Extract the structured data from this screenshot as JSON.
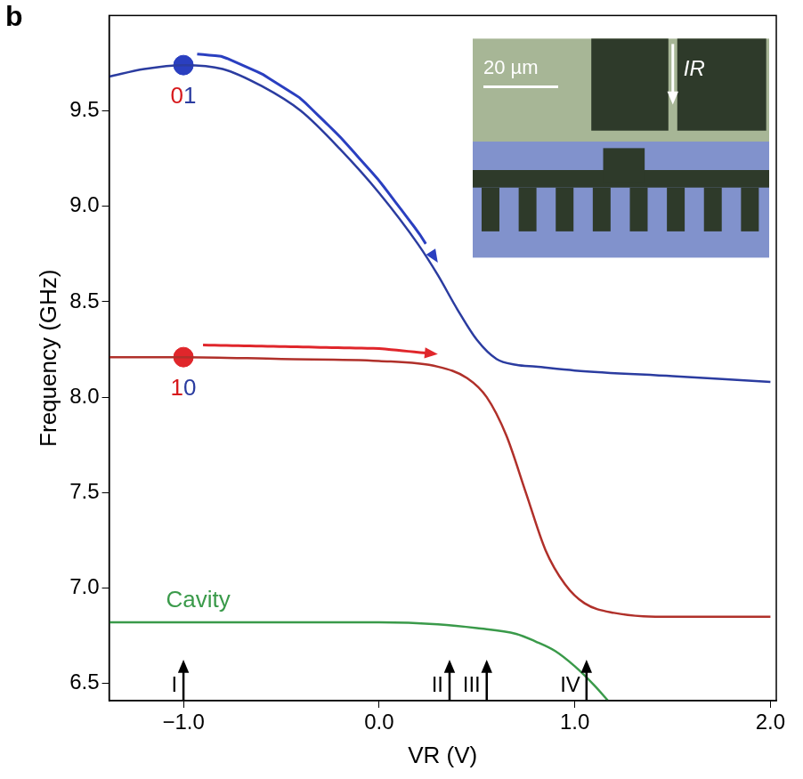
{
  "chart_data": {
    "type": "line",
    "panel": "b",
    "x_label": "VR (V)",
    "y_label": "Frequency (GHz)",
    "xlim": [
      -1.38,
      2.03
    ],
    "xticks": [
      {
        "value": -1.0,
        "label": "−1.0"
      },
      {
        "value": 0,
        "label": "0.0"
      },
      {
        "value": 1,
        "label": "1.0"
      },
      {
        "value": 2,
        "label": "2.0"
      }
    ],
    "ylim": [
      6.41,
      10.0
    ],
    "yticks": [
      6.5,
      {
        "value": 7,
        "label": "7.0"
      },
      7.5,
      {
        "value": 8,
        "label": "8.0"
      },
      8.5,
      {
        "value": 9,
        "label": "9.0"
      },
      9.5
    ],
    "grid": false,
    "series": [
      {
        "name": "01",
        "color": "#2b3ca0",
        "label_colors": [
          "#d7191c",
          "#2b3ca0"
        ],
        "x": [
          -1.38,
          -1.2,
          -1.0,
          -0.8,
          -0.6,
          -0.4,
          -0.2,
          0.0,
          0.2,
          0.3,
          0.4,
          0.5,
          0.6,
          0.7,
          0.8,
          1.0,
          1.5,
          2.0
        ],
        "values": [
          9.68,
          9.72,
          9.74,
          9.72,
          9.63,
          9.5,
          9.3,
          9.07,
          8.8,
          8.64,
          8.46,
          8.3,
          8.2,
          8.17,
          8.16,
          8.14,
          8.11,
          8.08
        ]
      },
      {
        "name": "10",
        "color": "#b0302a",
        "label_colors": [
          "#d7191c",
          "#2b3ca0"
        ],
        "x": [
          -1.38,
          -1.0,
          -0.5,
          0.0,
          0.3,
          0.45,
          0.55,
          0.65,
          0.75,
          0.85,
          0.95,
          1.05,
          1.2,
          1.5,
          2.0
        ],
        "values": [
          8.21,
          8.21,
          8.2,
          8.19,
          8.16,
          8.1,
          8.0,
          7.8,
          7.5,
          7.2,
          7.02,
          6.92,
          6.87,
          6.85,
          6.85
        ]
      },
      {
        "name": "Cavity",
        "color": "#3a9a4a",
        "x": [
          -1.38,
          -1.0,
          0.0,
          0.3,
          0.5,
          0.7,
          0.8,
          0.9,
          1.0,
          1.1,
          1.17
        ],
        "values": [
          6.82,
          6.82,
          6.82,
          6.81,
          6.79,
          6.76,
          6.72,
          6.67,
          6.59,
          6.49,
          6.41
        ]
      }
    ],
    "markers": [
      {
        "series": "01",
        "x": -1.0,
        "y": 9.74,
        "color": "#2a3fc0"
      },
      {
        "series": "10",
        "x": -1.0,
        "y": 8.21,
        "color": "#e0262b"
      }
    ],
    "arrows": [
      {
        "series": "01",
        "x_from": -0.93,
        "x_to": 0.3,
        "color": "#2a3fc0"
      },
      {
        "series": "10",
        "x_from": -0.9,
        "x_to": 0.3,
        "color": "#e0262b"
      }
    ],
    "voltage_markers": [
      {
        "label": "I",
        "x": -1.0
      },
      {
        "label": "II",
        "x": 0.36
      },
      {
        "label": "III",
        "x": 0.55
      },
      {
        "label": "IV",
        "x": 1.06
      }
    ],
    "inset": {
      "scale_bar": "20 µm",
      "current": "IR"
    }
  }
}
